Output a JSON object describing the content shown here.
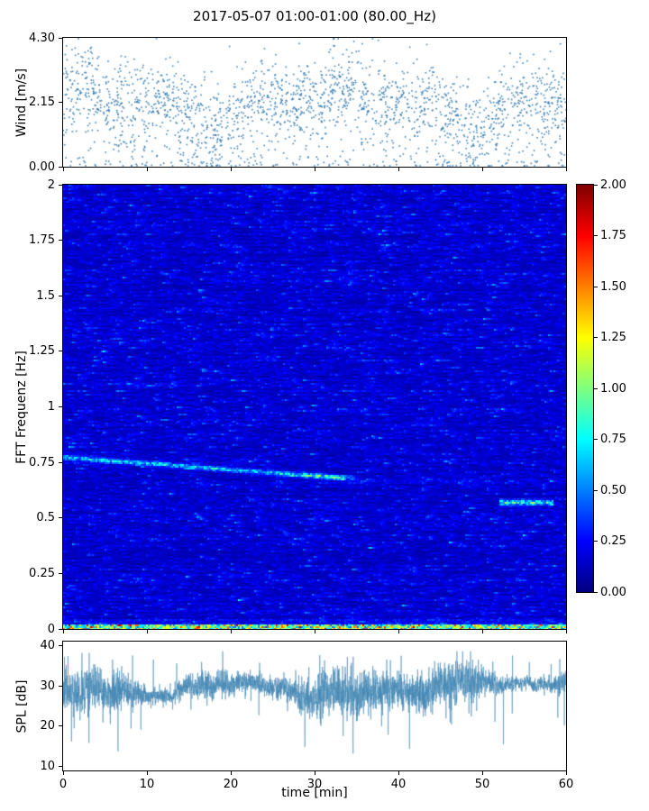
{
  "title": "2017-05-07 01:00-01:00 (80.00_Hz)",
  "xlabel": "time [min]",
  "chart_data": [
    {
      "type": "scatter",
      "name": "wind-speed",
      "ylabel": "Wind [m/s]",
      "ylim": [
        0,
        4.3
      ],
      "yticks": [
        "4.30",
        "2.15",
        "0.00"
      ],
      "xlim": [
        0,
        60
      ],
      "xticks": [
        0,
        10,
        20,
        30,
        40,
        50,
        60
      ],
      "marker_color": "#2d77ae",
      "summary": {
        "n_points": 2200,
        "mean_mps": 2.1,
        "std_mps": 0.75,
        "observed_range_mps": [
          0.0,
          4.3
        ],
        "description": "dense scatter of wind-speed samples fluctuating around ~2 m/s across 60 minutes with sparse points near 0 and near 4.3"
      }
    },
    {
      "type": "heatmap",
      "name": "fft-spectrogram",
      "ylabel": "FFT Frequenz [Hz]",
      "ylim": [
        0,
        2
      ],
      "yticks": [
        "2",
        "1.75",
        "1.5",
        "1.25",
        "1",
        "0.75",
        "0.5",
        "0.25",
        "0"
      ],
      "xlim": [
        0,
        60
      ],
      "xticks": [
        0,
        10,
        20,
        30,
        40,
        50,
        60
      ],
      "colormap": "jet",
      "clim": [
        0,
        2
      ],
      "colorbar_ticks": [
        "2.00",
        "1.75",
        "1.50",
        "1.25",
        "1.00",
        "0.75",
        "0.50",
        "0.25",
        "0.00"
      ],
      "background_level": {
        "mean": 0.17,
        "description": "low-amplitude dark/medium blue noise with short horizontal streaks and sparse cyan flecks"
      },
      "features": [
        {
          "name": "tonal-band",
          "freq_start_hz": 0.78,
          "freq_end_hz": 0.68,
          "t_start_min": 0,
          "t_end_min": 34,
          "peak_value": 0.9
        },
        {
          "name": "tonal-segment",
          "freq_hz": 0.57,
          "t_start_min": 52,
          "t_end_min": 58,
          "peak_value": 1.0
        },
        {
          "name": "broadband-low-frequency-band",
          "freq_below_hz": 0.04,
          "value_range": [
            0.4,
            2.0
          ]
        }
      ]
    },
    {
      "type": "line",
      "name": "sound-pressure-level",
      "ylabel": "SPL [dB]",
      "ylim": [
        9,
        41
      ],
      "yticks": [
        "40",
        "30",
        "20",
        "10"
      ],
      "xlim": [
        0,
        60
      ],
      "xticks": [
        0,
        10,
        20,
        30,
        40,
        50,
        60
      ],
      "line_color": "#4286b4",
      "summary": {
        "mean_db": 29,
        "typical_band_db": [
          23,
          35
        ],
        "min_db": 13,
        "max_db": 38,
        "dip_near_minute": 30,
        "description": "noisy SPL trace oscillating around ~29 dB with downward spikes to ~13 dB near minute 30 and upward spikes to ~38 dB"
      }
    }
  ]
}
